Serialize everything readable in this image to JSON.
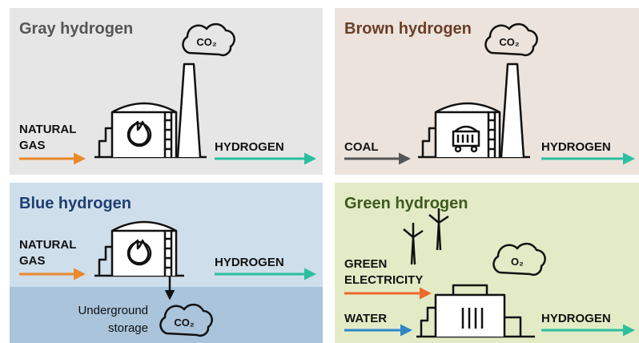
{
  "panels": [
    {
      "title": "Gray hydrogen",
      "inputs": [
        "NATURAL",
        "GAS"
      ],
      "output": "HYDROGEN",
      "emission": "CO₂"
    },
    {
      "title": "Brown hydrogen",
      "inputs": [
        "COAL"
      ],
      "output": "HYDROGEN",
      "emission": "CO₂"
    },
    {
      "title": "Blue hydrogen",
      "inputs": [
        "NATURAL",
        "GAS"
      ],
      "output": "HYDROGEN",
      "emission": "CO₂",
      "storage": [
        "Underground",
        "storage"
      ]
    },
    {
      "title": "Green hydrogen",
      "inputs": [
        "GREEN",
        "ELECTRICITY",
        "WATER"
      ],
      "output": "HYDROGEN",
      "emission": "O₂"
    }
  ]
}
